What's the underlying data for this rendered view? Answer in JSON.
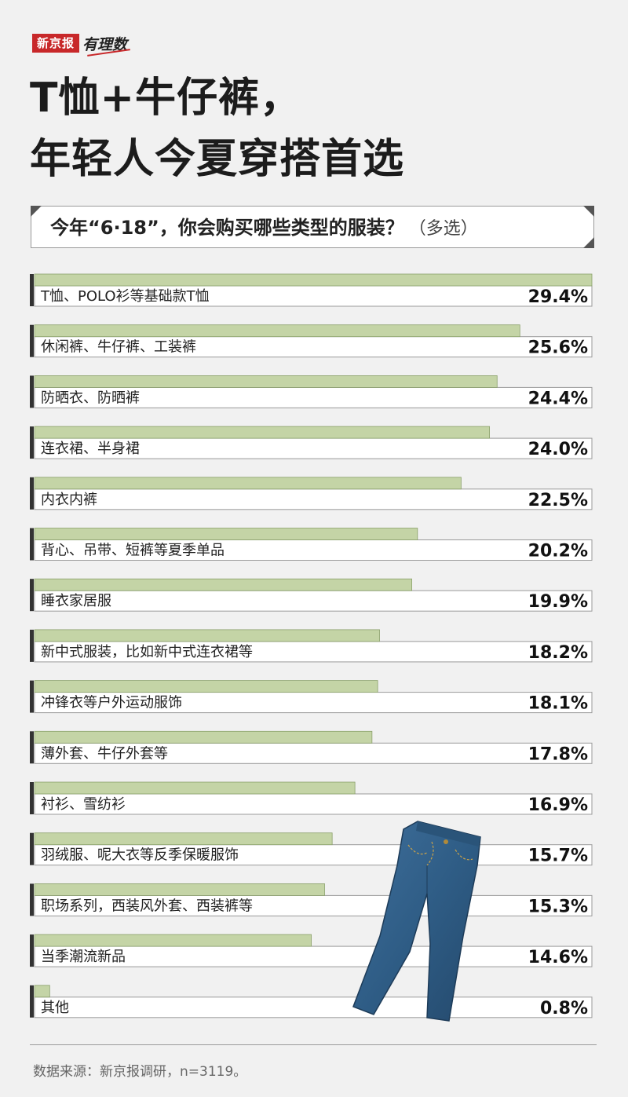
{
  "brand": {
    "name": "新京报",
    "column": "有理数"
  },
  "headline": {
    "line1": "T恤+牛仔裤，",
    "line2": "年轻人今夏穿搭首选"
  },
  "question": {
    "text": "今年“6·18”，你会购买哪些类型的服装？",
    "note": "（多选）"
  },
  "colors": {
    "bar": "#c4d4a6",
    "label_bg": "#ffffff",
    "axis": "#333333"
  },
  "chart_data": {
    "type": "bar",
    "orientation": "horizontal",
    "categories": [
      "T恤、POLO衫等基础款T恤",
      "休闲裤、牛仔裤、工装裤",
      "防晒衣、防晒裤",
      "连衣裙、半身裙",
      "内衣内裤",
      "背心、吊带、短裤等夏季单品",
      "睡衣家居服",
      "新中式服装，比如新中式连衣裙等",
      "冲锋衣等户外运动服饰",
      "薄外套、牛仔外套等",
      "衬衫、雪纺衫",
      "羽绒服、呢大衣等反季保暖服饰",
      "职场系列，西装风外套、西装裤等",
      "当季潮流新品",
      "其他"
    ],
    "values": [
      29.4,
      25.6,
      24.4,
      24.0,
      22.5,
      20.2,
      19.9,
      18.2,
      18.1,
      17.8,
      16.9,
      15.7,
      15.3,
      14.6,
      0.8
    ],
    "value_labels": [
      "29.4%",
      "25.6%",
      "24.4%",
      "24.0%",
      "22.5%",
      "20.2%",
      "19.9%",
      "18.2%",
      "18.1%",
      "17.8%",
      "16.9%",
      "15.7%",
      "15.3%",
      "14.6%",
      "0.8%"
    ],
    "unit": "%"
  },
  "footer": {
    "source": "数据来源：新京报调研，n=3119。"
  }
}
